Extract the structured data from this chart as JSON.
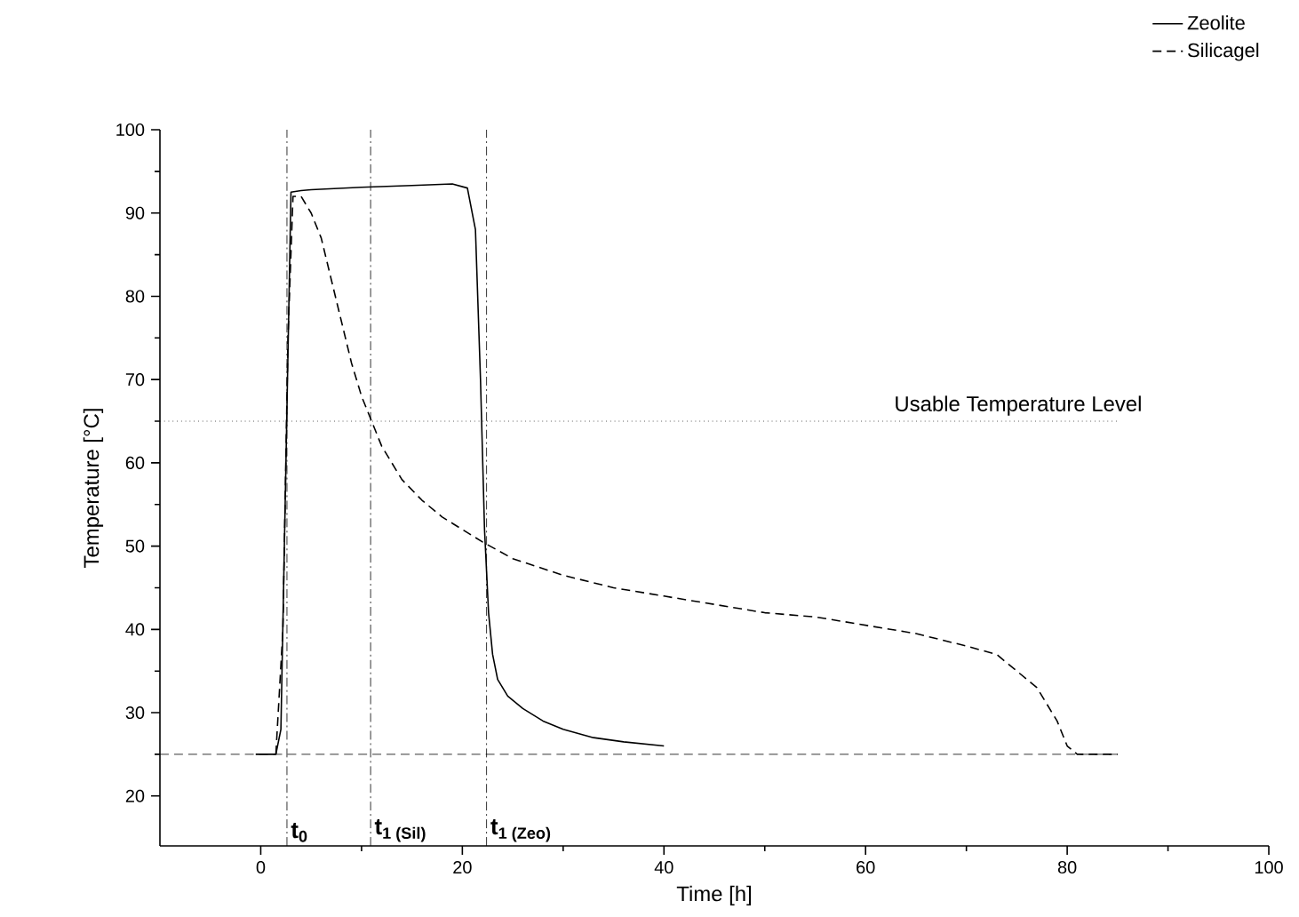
{
  "chart_data": {
    "type": "line",
    "xlabel": "Time  [h]",
    "ylabel": "Temperature  [°C]",
    "xlim": [
      -10,
      100
    ],
    "ylim": [
      14,
      100
    ],
    "xticks": [
      0,
      20,
      40,
      60,
      80,
      100
    ],
    "yticks": [
      20,
      30,
      40,
      50,
      60,
      70,
      80,
      90,
      100
    ],
    "legend": "top right",
    "series": [
      {
        "name": "Zeolite",
        "color": "#000000",
        "line_style": "solid",
        "x": [
          -0.5,
          1.5,
          2,
          2.5,
          3,
          4,
          5,
          10,
          15,
          19,
          20.5,
          21.3,
          21.8,
          22.2,
          22.6,
          23,
          23.5,
          24.5,
          26,
          28,
          30,
          33,
          36,
          40
        ],
        "values": [
          25,
          25,
          28,
          60,
          92.5,
          92.7,
          92.8,
          93.1,
          93.3,
          93.5,
          93,
          88,
          70,
          52,
          42,
          37,
          34,
          32,
          30.5,
          29,
          28,
          27,
          26.5,
          26
        ]
      },
      {
        "name": "Silicagel",
        "color": "#000000",
        "line_style": "dashed",
        "x": [
          1.5,
          2.2,
          2.7,
          3.2,
          4,
          5,
          6,
          7,
          8,
          9,
          10,
          11,
          12,
          14,
          16,
          18,
          20,
          22,
          25,
          30,
          35,
          40,
          45,
          50,
          55,
          60,
          65,
          70,
          73,
          75,
          77,
          79,
          80,
          81,
          85
        ],
        "values": [
          25,
          40,
          75,
          92,
          92,
          90,
          87,
          82,
          77,
          72,
          68,
          65,
          62,
          58,
          55.5,
          53.5,
          52,
          50.5,
          48.5,
          46.5,
          45,
          44,
          43,
          42,
          41.5,
          40.5,
          39.5,
          38,
          37,
          35,
          33,
          29,
          26,
          25,
          25
        ]
      }
    ],
    "ref_lines": [
      {
        "axis": "y",
        "value": 65,
        "label": "Usable Temperature Level",
        "line_style": "dotted"
      },
      {
        "axis": "y",
        "value": 25,
        "label": null,
        "line_style": "dashed"
      },
      {
        "axis": "x",
        "value": 2.6,
        "label": "t$_{0}$",
        "line_style": "dashdot"
      },
      {
        "axis": "x",
        "value": 10.9,
        "label": "t$_{1 (Sil)}$",
        "line_style": "dashdot"
      },
      {
        "axis": "x",
        "value": 22.4,
        "label": "t$_{1 (Zeo)}$",
        "line_style": "dashdot"
      }
    ]
  }
}
